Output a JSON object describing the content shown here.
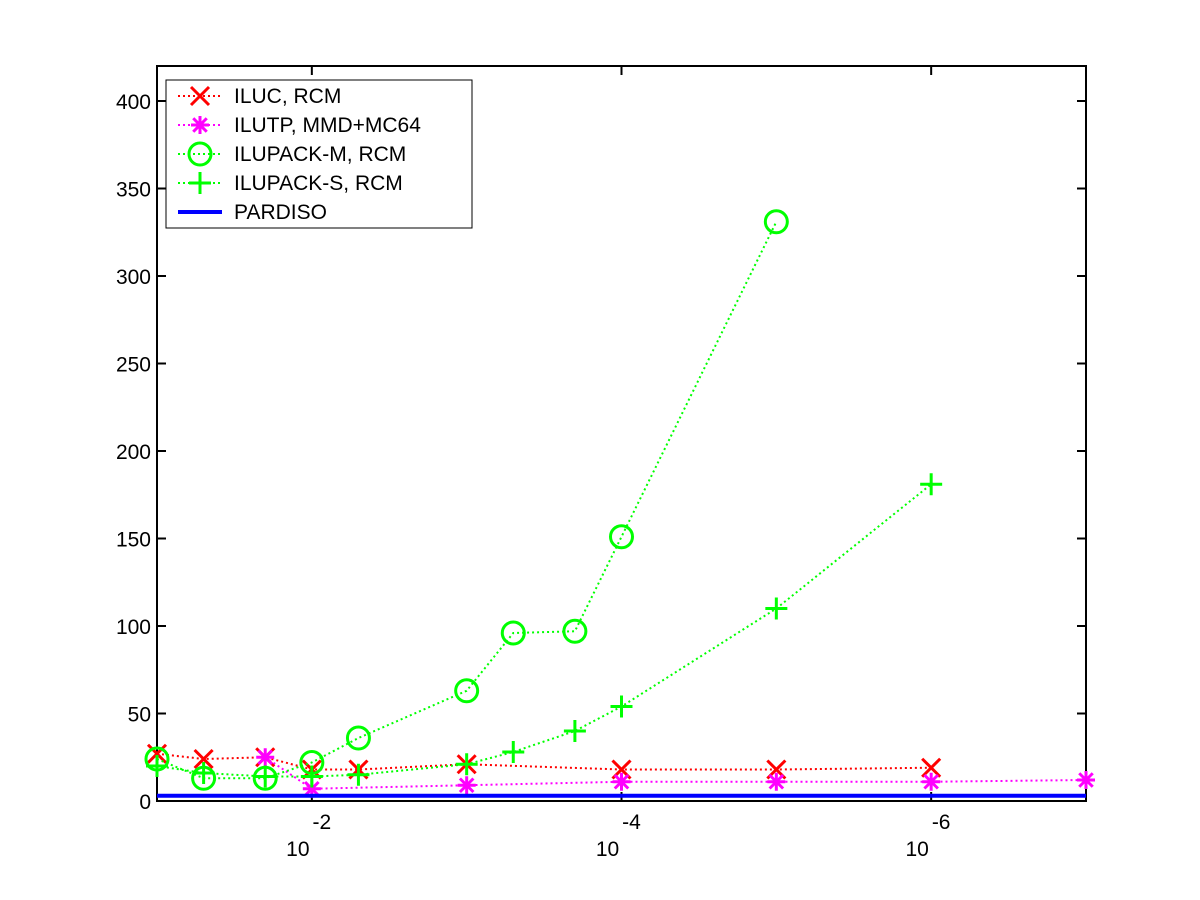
{
  "chart_data": {
    "type": "line",
    "title": "",
    "xlabel": "",
    "ylabel": "",
    "x_scale": "log",
    "x_reversed": true,
    "xlim": [
      0.1,
      1e-07
    ],
    "ylim": [
      0,
      420
    ],
    "grid": false,
    "legend_position": "top-left",
    "x_ticks": [
      {
        "value": 0.01,
        "base": "10",
        "exponent": "-2"
      },
      {
        "value": 0.0001,
        "base": "10",
        "exponent": "-4"
      },
      {
        "value": 1e-06,
        "base": "10",
        "exponent": "-6"
      }
    ],
    "y_ticks": [
      0,
      50,
      100,
      150,
      200,
      250,
      300,
      350,
      400
    ],
    "y_tick_labels": [
      "0",
      "50",
      "100",
      "150",
      "200",
      "250",
      "300",
      "350",
      "400"
    ],
    "series": [
      {
        "name": "ILUC, RCM",
        "color": "#ff0000",
        "marker": "x",
        "line": "dotted",
        "points": [
          [
            0.1,
            27
          ],
          [
            0.05,
            24
          ],
          [
            0.02,
            25
          ],
          [
            0.01,
            18
          ],
          [
            0.005,
            18
          ],
          [
            0.001,
            21
          ],
          [
            0.0001,
            18
          ],
          [
            1e-05,
            18
          ],
          [
            1e-06,
            19
          ]
        ]
      },
      {
        "name": "ILUTP, MMD+MC64",
        "color": "#ff00ff",
        "marker": "asterisk",
        "line": "dotted",
        "points": [
          [
            0.02,
            25
          ],
          [
            0.01,
            7
          ],
          [
            0.001,
            9
          ],
          [
            0.0001,
            11
          ],
          [
            1e-05,
            11
          ],
          [
            1e-06,
            11
          ],
          [
            1e-07,
            12
          ]
        ]
      },
      {
        "name": "ILUPACK-M, RCM",
        "color": "#00ff00",
        "marker": "circle",
        "line": "dotted",
        "points": [
          [
            0.1,
            24
          ],
          [
            0.05,
            13
          ],
          [
            0.02,
            13
          ],
          [
            0.01,
            22
          ],
          [
            0.005,
            36
          ],
          [
            0.001,
            63
          ],
          [
            0.0005,
            96
          ],
          [
            0.0002,
            97
          ],
          [
            0.0001,
            151
          ],
          [
            1e-05,
            331
          ]
        ]
      },
      {
        "name": "ILUPACK-S, RCM",
        "color": "#00ff00",
        "marker": "plus",
        "line": "dotted",
        "points": [
          [
            0.1,
            20
          ],
          [
            0.05,
            16
          ],
          [
            0.02,
            14
          ],
          [
            0.01,
            14
          ],
          [
            0.005,
            15
          ],
          [
            0.001,
            21
          ],
          [
            0.0005,
            28
          ],
          [
            0.0002,
            40
          ],
          [
            0.0001,
            54
          ],
          [
            1e-05,
            110
          ],
          [
            1e-06,
            181
          ]
        ]
      },
      {
        "name": "PARDISO",
        "color": "#0000ff",
        "marker": "none",
        "line": "solid",
        "points": [
          [
            0.1,
            3
          ],
          [
            1e-07,
            3
          ]
        ]
      }
    ]
  }
}
